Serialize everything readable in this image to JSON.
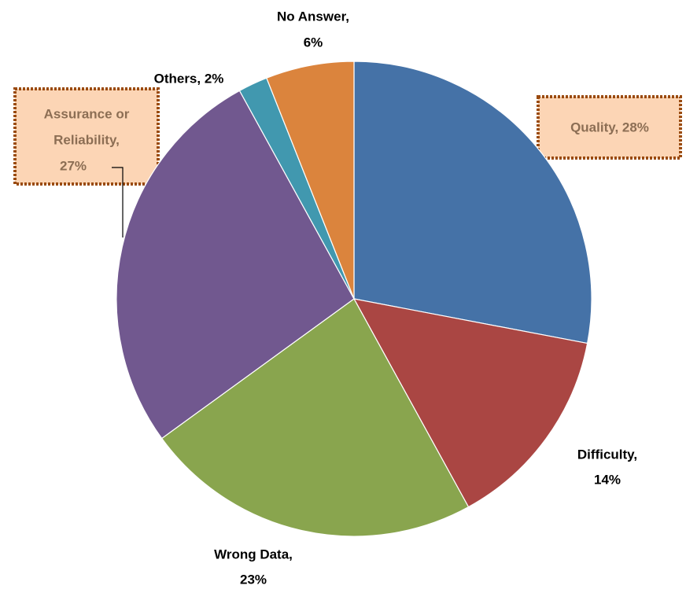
{
  "chart_data": {
    "type": "pie",
    "values": [
      28,
      14,
      23,
      27,
      2,
      6
    ],
    "value_labels": [
      [
        "Quality, 28%"
      ],
      [
        "Difficulty,",
        "14%"
      ],
      [
        "Wrong Data,",
        "23%"
      ],
      [
        "Assurance or",
        "Reliability,",
        "27%"
      ],
      [
        "Others, 2%"
      ],
      [
        "No Answer,",
        "6%"
      ]
    ],
    "colors": [
      "#4572a7",
      "#aa4643",
      "#89a54e",
      "#71588f",
      "#4198af",
      "#db843d"
    ]
  }
}
